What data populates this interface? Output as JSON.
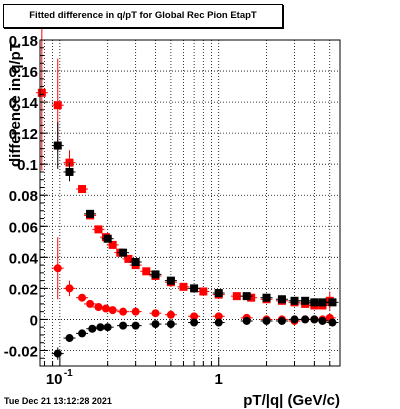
{
  "chart_data": {
    "type": "scatter",
    "title": "Fitted difference in q/pT for Global Rec Pion EtapT",
    "xlabel": "pT/|q| (GeV/c)",
    "ylabel": "difference in q/pT",
    "x_scale": "log",
    "xlim": [
      0.075,
      5.8
    ],
    "ylim": [
      -0.03,
      0.18
    ],
    "x_tick_labels": [
      "10^-1",
      "1"
    ],
    "y_ticks": [
      -0.02,
      0,
      0.02,
      0.04,
      0.06,
      0.08,
      0.1,
      0.12,
      0.14,
      0.16,
      0.18
    ],
    "y_tick_labels": [
      "-0.02",
      "0",
      "0.02",
      "0.04",
      "0.06",
      "0.08",
      "0.1",
      "0.12",
      "0.14",
      "0.16",
      "0.18"
    ],
    "grid": true,
    "series": [
      {
        "color": "#ff0000",
        "marker": "square",
        "x": [
          0.077,
          0.097,
          0.115,
          0.138,
          0.155,
          0.175,
          0.195,
          0.215,
          0.24,
          0.27,
          0.3,
          0.35,
          0.4,
          0.5,
          0.6,
          0.8,
          1.0,
          1.3,
          1.6,
          2.0,
          2.5,
          3.0,
          3.5,
          4.0,
          4.5,
          5.0
        ],
        "y": [
          0.146,
          0.138,
          0.101,
          0.084,
          0.067,
          0.058,
          0.053,
          0.048,
          0.043,
          0.039,
          0.035,
          0.031,
          0.028,
          0.024,
          0.021,
          0.018,
          0.016,
          0.015,
          0.014,
          0.013,
          0.012,
          0.011,
          0.01,
          0.009,
          0.009,
          0.012
        ],
        "yerr": [
          0.05,
          0.03,
          0.008,
          0.002,
          0.0015,
          0.001,
          0.001,
          0.001,
          0.001,
          0.001,
          0.001,
          0.001,
          0.001,
          0.001,
          0.001,
          0.001,
          0.001,
          0.001,
          0.001,
          0.001,
          0.001,
          0.001,
          0.001,
          0.001,
          0.001,
          0.006
        ]
      },
      {
        "color": "#000000",
        "marker": "square",
        "x": [
          0.097,
          0.115,
          0.155,
          0.2,
          0.25,
          0.3,
          0.4,
          0.5,
          0.7,
          1.0,
          1.5,
          2.0,
          2.5,
          3.0,
          3.5,
          4.0,
          4.5,
          5.2
        ],
        "y": [
          0.112,
          0.095,
          0.068,
          0.052,
          0.043,
          0.037,
          0.029,
          0.025,
          0.02,
          0.017,
          0.015,
          0.014,
          0.013,
          0.012,
          0.012,
          0.011,
          0.011,
          0.011
        ],
        "yerr": [
          0.015,
          0.006,
          0.002,
          0.001,
          0.001,
          0.001,
          0.001,
          0.001,
          0.001,
          0.001,
          0.001,
          0.001,
          0.001,
          0.001,
          0.001,
          0.001,
          0.001,
          0.002
        ]
      },
      {
        "color": "#ff0000",
        "marker": "circle",
        "x": [
          0.097,
          0.115,
          0.138,
          0.155,
          0.175,
          0.195,
          0.215,
          0.25,
          0.3,
          0.4,
          0.5,
          0.7,
          1.0,
          1.5,
          2.0,
          2.5,
          3.0,
          3.5,
          4.0,
          4.5,
          5.0
        ],
        "y": [
          0.033,
          0.02,
          0.014,
          0.01,
          0.008,
          0.007,
          0.006,
          0.005,
          0.005,
          0.004,
          0.003,
          0.002,
          0.002,
          0.001,
          0.0,
          0.0,
          -0.001,
          0.0,
          0.0,
          0.0,
          0.001
        ],
        "yerr": [
          0.02,
          0.005,
          0.002,
          0.001,
          0.001,
          0.001,
          0.001,
          0.001,
          0.001,
          0.001,
          0.001,
          0.001,
          0.001,
          0.001,
          0.001,
          0.001,
          0.001,
          0.001,
          0.001,
          0.001,
          0.002
        ]
      },
      {
        "color": "#000000",
        "marker": "circle",
        "x": [
          0.097,
          0.115,
          0.138,
          0.16,
          0.18,
          0.2,
          0.25,
          0.3,
          0.4,
          0.5,
          0.7,
          1.0,
          1.5,
          2.0,
          2.5,
          3.0,
          3.5,
          4.0,
          4.5,
          5.2
        ],
        "y": [
          -0.022,
          -0.012,
          -0.009,
          -0.006,
          -0.005,
          -0.005,
          -0.004,
          -0.004,
          -0.003,
          -0.003,
          -0.002,
          -0.002,
          -0.001,
          -0.001,
          -0.001,
          0.0,
          0.0,
          0.0,
          -0.001,
          -0.002
        ],
        "yerr": [
          0.004,
          0.002,
          0.001,
          0.001,
          0.001,
          0.001,
          0.001,
          0.001,
          0.001,
          0.001,
          0.001,
          0.001,
          0.001,
          0.001,
          0.001,
          0.001,
          0.001,
          0.001,
          0.001,
          0.002
        ]
      }
    ]
  },
  "footer": {
    "timestamp": "Tue Dec 21 13:12:28 2021"
  }
}
